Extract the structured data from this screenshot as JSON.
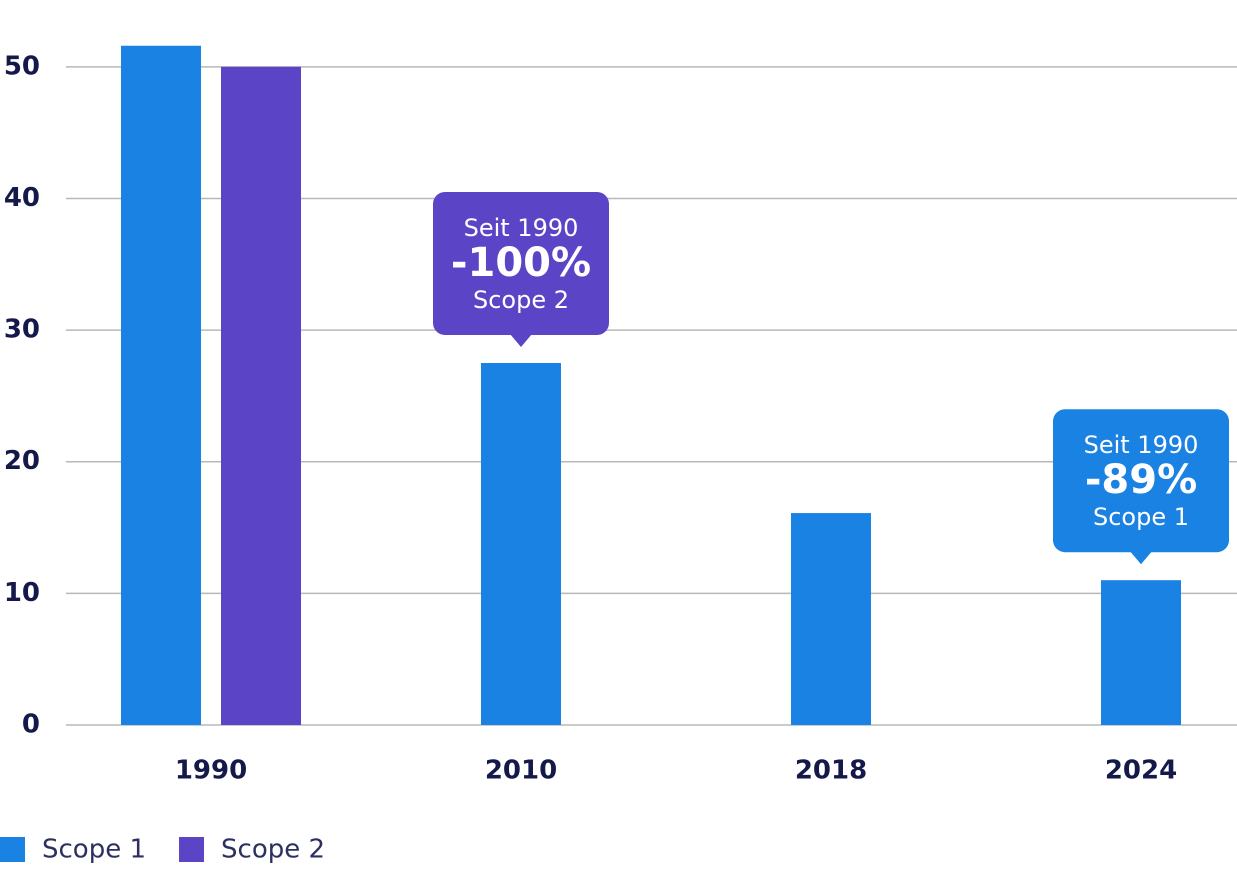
{
  "chart_data": {
    "type": "bar",
    "categories": [
      "1990",
      "2010",
      "2018",
      "2024"
    ],
    "series": [
      {
        "name": "Scope 1",
        "color": "#1a82e2",
        "values": [
          51.6,
          27.5,
          16.1,
          11.0
        ]
      },
      {
        "name": "Scope 2",
        "color": "#5b45c6",
        "values": [
          50,
          null,
          null,
          null
        ]
      }
    ],
    "ylim": [
      0,
      55
    ],
    "yticks": [
      0,
      10,
      20,
      30,
      40,
      50
    ],
    "grid": true,
    "annotations": [
      {
        "x": "2010",
        "color": "#5b45c6",
        "text": [
          "Seit 1990",
          "-100%",
          "Scope 2"
        ]
      },
      {
        "x": "2024",
        "color": "#1a82e2",
        "text": [
          "Seit 1990",
          "-89%",
          "Scope 1"
        ]
      }
    ]
  }
}
